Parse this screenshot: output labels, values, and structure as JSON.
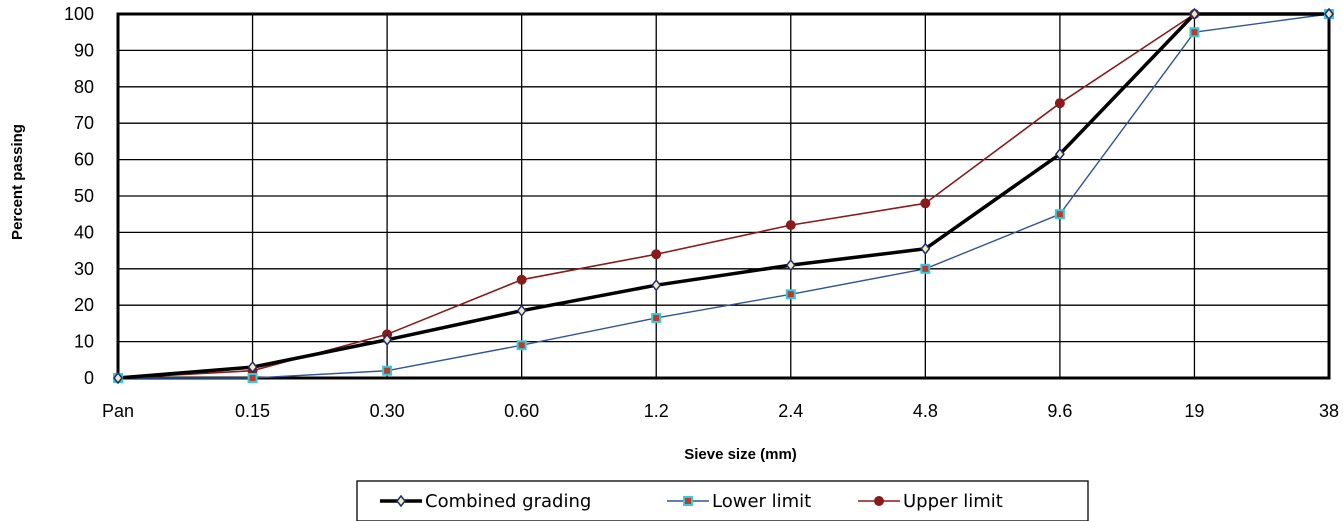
{
  "chart_data": {
    "type": "line",
    "title": "",
    "xlabel": "Sieve size (mm)",
    "ylabel": "Percent passing",
    "categories": [
      "Pan",
      "0.15",
      "0.30",
      "0.60",
      "1.2",
      "2.4",
      "4.8",
      "9.6",
      "19",
      "38"
    ],
    "ylim": [
      0,
      100
    ],
    "yticks": [
      0,
      10,
      20,
      30,
      40,
      50,
      60,
      70,
      80,
      90,
      100
    ],
    "grid": true,
    "legend_position": "bottom",
    "series": [
      {
        "name": "Combined grading",
        "values": [
          0,
          3,
          10.5,
          18.5,
          25.5,
          31,
          35.5,
          61.5,
          100,
          100
        ],
        "color": "#000000",
        "marker": "diamond",
        "marker_fill": "#f2eeb0",
        "marker_stroke": "#1f2a7a"
      },
      {
        "name": "Lower limit",
        "values": [
          0,
          0,
          2,
          9,
          16.5,
          23,
          30,
          45,
          95,
          100
        ],
        "color": "#2f5597",
        "marker": "square",
        "marker_fill": "#c0392b",
        "marker_stroke": "#33ccdd"
      },
      {
        "name": "Upper limit",
        "values": [
          0,
          2,
          12,
          27,
          34,
          42,
          48,
          75.5,
          100,
          100
        ],
        "color": "#8b1a1a",
        "marker": "circle",
        "marker_fill": "#8b1a1a",
        "marker_stroke": "#8b1a1a"
      }
    ]
  }
}
